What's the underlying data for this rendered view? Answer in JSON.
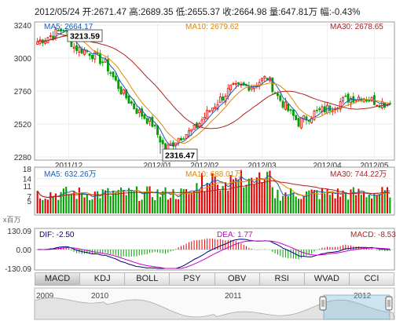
{
  "header": {
    "date": "2012/05/24",
    "open_label": "开:",
    "open": "2671.47",
    "high_label": "高:",
    "high": "2689.35",
    "low_label": "低:",
    "low": "2655.37",
    "close_label": "收:",
    "close": "2664.98",
    "volume_label": "量:",
    "volume": "647.81万",
    "change_label": "幅:",
    "change": "-0.43%"
  },
  "price_panel": {
    "ma5_label": "MA5: 2664.17",
    "ma10_label": "MA10: 2679.62",
    "ma30_label": "MA30: 2678.65",
    "y_ticks": [
      "3240",
      "3000",
      "2760",
      "2520",
      "2280"
    ],
    "y_values": [
      3240,
      3000,
      2760,
      2520,
      2280
    ],
    "high_callout": "3213.59",
    "low_callout": "2316.47",
    "month_labels": [
      "2011/12",
      "2012/01",
      "2012/02",
      "2012/03",
      "2012/04",
      "2012/05"
    ]
  },
  "volume_panel": {
    "ma5_label": "MA5: 632.26万",
    "ma10_label": "MA10: 688.01万",
    "ma30_label": "MA30: 744.22万",
    "y_ticks": [
      "18",
      "14",
      "11",
      "7",
      "5"
    ],
    "unit_label": "x百万"
  },
  "macd_panel": {
    "dif_label": "DIF: -2.50",
    "dea_label": "DEA: 1.77",
    "macd_label": "MACD: -8.53",
    "y_ticks": [
      "130.09",
      "0.00",
      "-130.09"
    ]
  },
  "tabs": [
    "MACD",
    "KDJ",
    "BOLL",
    "PSY",
    "OBV",
    "RSI",
    "WVAD",
    "CCI"
  ],
  "active_tab": 0,
  "navigator": {
    "year_labels": [
      "2009",
      "2010",
      "2011",
      "2012"
    ]
  },
  "colors": {
    "up": "#e60000",
    "down": "#00a000",
    "ma5": "#1a5fb4",
    "ma10": "#e08a00",
    "ma30": "#b22222",
    "dif": "#000080",
    "dea": "#cc00cc"
  },
  "chart_data": {
    "type": "candlestick",
    "x_range": [
      "2011/11",
      "2012/05/24"
    ],
    "price_ylim": [
      2280,
      3240
    ],
    "highlights": {
      "max": 3213.59,
      "min": 2316.47
    },
    "last_bar": {
      "open": 2671.47,
      "high": 2689.35,
      "low": 2655.37,
      "close": 2664.98,
      "volume_wan": 647.81
    },
    "anchors": [
      {
        "i": 0,
        "c": 3120
      },
      {
        "i": 6,
        "c": 3170
      },
      {
        "i": 10,
        "c": 3213
      },
      {
        "i": 14,
        "c": 3080
      },
      {
        "i": 20,
        "c": 3040
      },
      {
        "i": 26,
        "c": 2960
      },
      {
        "i": 32,
        "c": 2760
      },
      {
        "i": 38,
        "c": 2620
      },
      {
        "i": 44,
        "c": 2520
      },
      {
        "i": 49,
        "c": 2330
      },
      {
        "i": 54,
        "c": 2420
      },
      {
        "i": 60,
        "c": 2480
      },
      {
        "i": 66,
        "c": 2620
      },
      {
        "i": 74,
        "c": 2780
      },
      {
        "i": 82,
        "c": 2800
      },
      {
        "i": 88,
        "c": 2860
      },
      {
        "i": 92,
        "c": 2720
      },
      {
        "i": 96,
        "c": 2620
      },
      {
        "i": 100,
        "c": 2530
      },
      {
        "i": 106,
        "c": 2600
      },
      {
        "i": 112,
        "c": 2640
      },
      {
        "i": 118,
        "c": 2700
      },
      {
        "i": 124,
        "c": 2720
      },
      {
        "i": 130,
        "c": 2680
      },
      {
        "i": 135,
        "c": 2665
      }
    ]
  }
}
